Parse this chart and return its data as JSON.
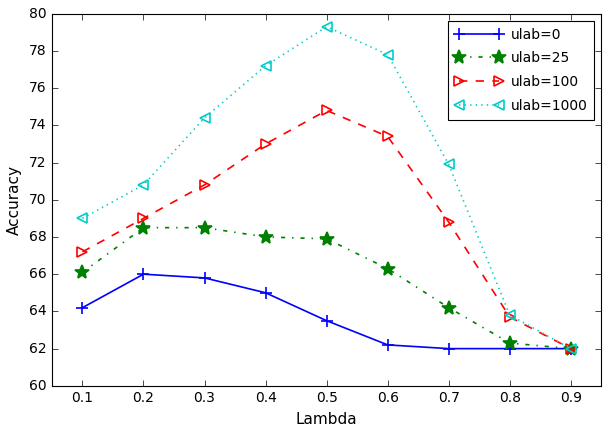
{
  "x": [
    0.1,
    0.2,
    0.3,
    0.4,
    0.5,
    0.6,
    0.7,
    0.8,
    0.9
  ],
  "ulab0": [
    64.2,
    66.0,
    65.8,
    65.0,
    63.5,
    62.2,
    62.0,
    62.0,
    62.0
  ],
  "ulab25": [
    66.1,
    68.5,
    68.5,
    68.0,
    67.9,
    66.3,
    64.2,
    62.3,
    62.0
  ],
  "ulab100": [
    67.2,
    69.0,
    70.8,
    73.0,
    74.8,
    73.4,
    68.8,
    63.7,
    62.0
  ],
  "ulab1000": [
    69.0,
    70.8,
    74.4,
    77.2,
    79.3,
    77.8,
    71.9,
    63.8,
    62.0
  ],
  "colors": {
    "ulab0": "#0000ff",
    "ulab25": "#008000",
    "ulab100": "#ff0000",
    "ulab1000": "#00cccc"
  },
  "linestyles": {
    "ulab0": "-",
    "ulab25": "-.",
    "ulab100": "--",
    "ulab1000": ":"
  },
  "markers": {
    "ulab0": "+",
    "ulab25": "*",
    "ulab100": ">",
    "ulab1000": "<"
  },
  "labels": {
    "ulab0": "ulab=0",
    "ulab25": "ulab=25",
    "ulab100": "ulab=100",
    "ulab1000": "ulab=1000"
  },
  "xlabel": "Lambda",
  "ylabel": "Accuracy",
  "xlim": [
    0.05,
    0.95
  ],
  "ylim": [
    60,
    80
  ],
  "yticks": [
    60,
    62,
    64,
    66,
    68,
    70,
    72,
    74,
    76,
    78,
    80
  ],
  "xticks": [
    0.1,
    0.2,
    0.3,
    0.4,
    0.5,
    0.6,
    0.7,
    0.8,
    0.9
  ],
  "fig_width": 6.08,
  "fig_height": 4.34,
  "dpi": 100
}
